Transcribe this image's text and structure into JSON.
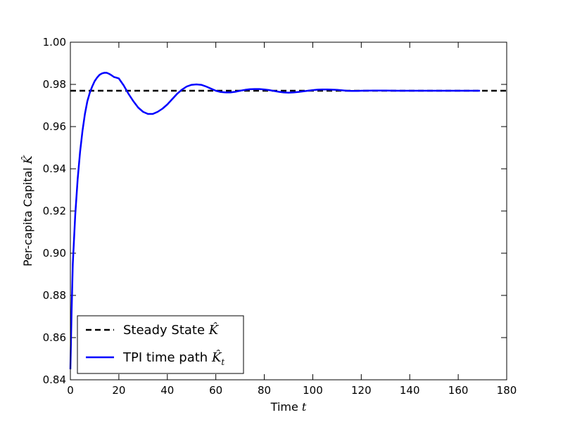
{
  "chart_data": {
    "type": "line",
    "xlabel": {
      "text": "Time",
      "symbol": "t"
    },
    "ylabel": {
      "text": "Per-capita Capital",
      "symbol": "K̂"
    },
    "xlim": [
      0,
      180
    ],
    "ylim": [
      0.84,
      1.0
    ],
    "xticks": [
      0,
      20,
      40,
      60,
      80,
      100,
      120,
      140,
      160,
      180
    ],
    "xtick_labels": [
      "0",
      "20",
      "40",
      "60",
      "80",
      "100",
      "120",
      "140",
      "160",
      "180"
    ],
    "yticks": [
      0.84,
      0.86,
      0.88,
      0.9,
      0.92,
      0.94,
      0.96,
      0.98,
      1.0
    ],
    "ytick_labels": [
      "0.84",
      "0.86",
      "0.88",
      "0.90",
      "0.92",
      "0.94",
      "0.96",
      "0.98",
      "1.00"
    ],
    "grid": false,
    "legend_position": "lower-left",
    "series": [
      {
        "name": "Steady State",
        "legend_symbol": "K̂",
        "style": "dashed",
        "color": "#000000",
        "x": [
          0,
          180
        ],
        "y": [
          0.977,
          0.977
        ]
      },
      {
        "name": "TPI time path",
        "legend_symbol": "K̂",
        "legend_subscript": "t",
        "style": "solid",
        "color": "#0000ff",
        "x": [
          0,
          0.5,
          1,
          2,
          3,
          4,
          5,
          6,
          7,
          8,
          9,
          10,
          11,
          12,
          13,
          14,
          15,
          16,
          17,
          18,
          19,
          20,
          22,
          24,
          26,
          28,
          30,
          32,
          34,
          36,
          38,
          40,
          42,
          44,
          46,
          48,
          50,
          52,
          54,
          56,
          58,
          60,
          62,
          64,
          66,
          68,
          70,
          72,
          74,
          76,
          78,
          80,
          82,
          84,
          86,
          88,
          90,
          92,
          94,
          96,
          98,
          100,
          102,
          104,
          106,
          108,
          110,
          112,
          114,
          116,
          118,
          120,
          125,
          130,
          135,
          140,
          145,
          150,
          155,
          160,
          165,
          169
        ],
        "y": [
          0.845,
          0.872,
          0.895,
          0.918,
          0.935,
          0.948,
          0.958,
          0.966,
          0.972,
          0.976,
          0.979,
          0.9815,
          0.9832,
          0.9845,
          0.9852,
          0.9855,
          0.9855,
          0.985,
          0.9843,
          0.9835,
          0.9832,
          0.9828,
          0.9795,
          0.9755,
          0.972,
          0.969,
          0.967,
          0.966,
          0.966,
          0.967,
          0.9685,
          0.9705,
          0.973,
          0.9755,
          0.9775,
          0.979,
          0.9798,
          0.98,
          0.9798,
          0.979,
          0.978,
          0.977,
          0.9764,
          0.9762,
          0.9762,
          0.9765,
          0.977,
          0.9774,
          0.9777,
          0.9778,
          0.9778,
          0.9776,
          0.9773,
          0.9769,
          0.9765,
          0.9762,
          0.9761,
          0.9762,
          0.9764,
          0.9767,
          0.977,
          0.9773,
          0.9775,
          0.9776,
          0.9776,
          0.9775,
          0.9774,
          0.9772,
          0.977,
          0.9769,
          0.9769,
          0.977,
          0.9771,
          0.9771,
          0.977,
          0.977,
          0.977,
          0.977,
          0.977,
          0.977,
          0.977,
          0.977
        ]
      }
    ]
  }
}
